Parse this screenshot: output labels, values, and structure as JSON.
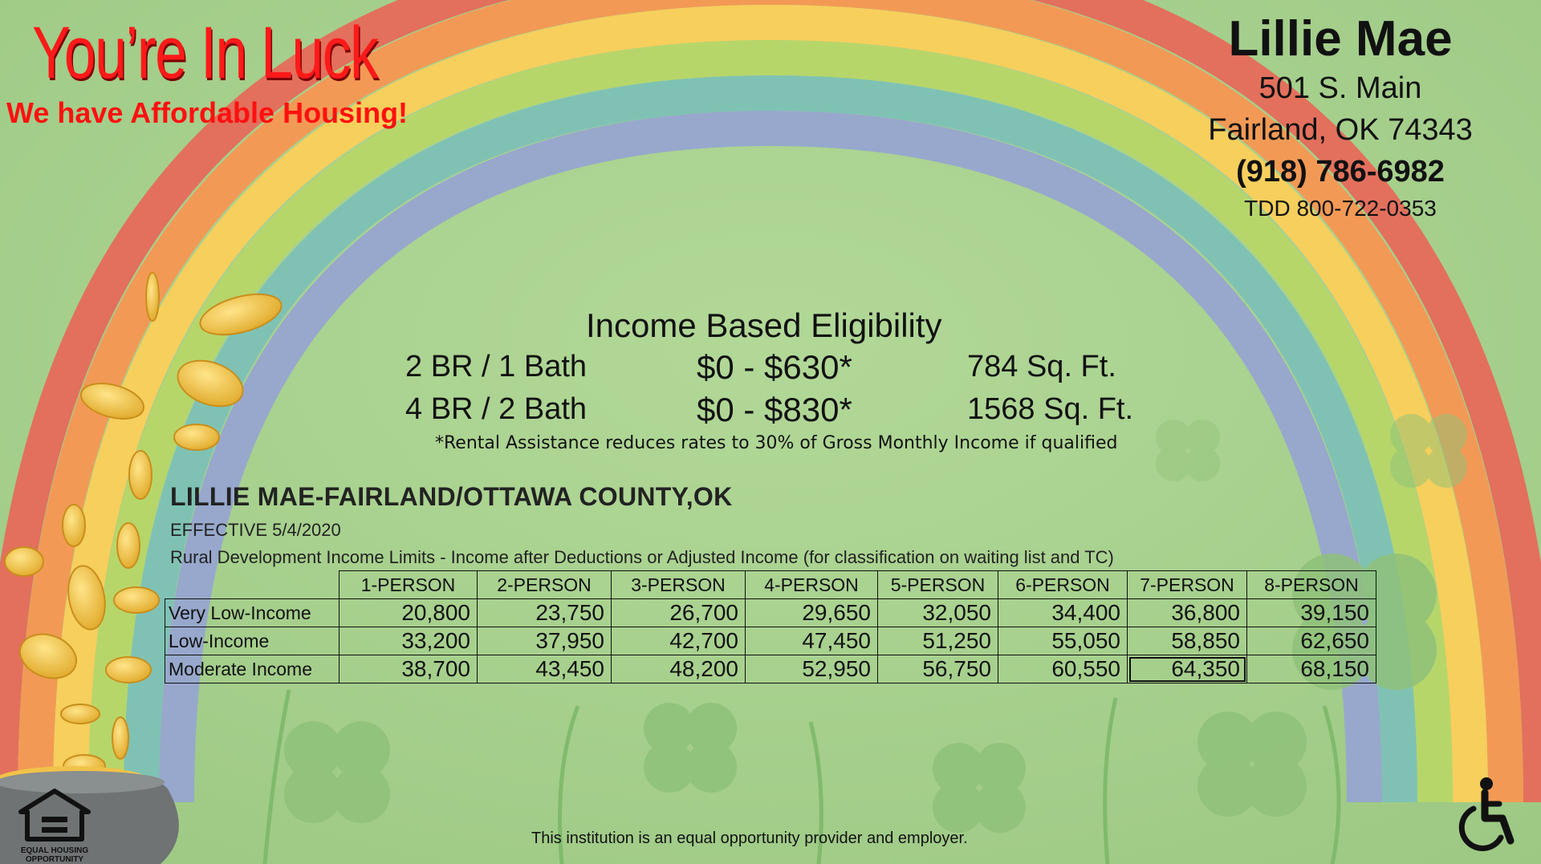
{
  "promo": {
    "headline": "You’re In Luck",
    "subheadline": "We have Affordable Housing!"
  },
  "property": {
    "name": "Lillie Mae",
    "address_line1": "501 S. Main",
    "address_line2": "Fairland, OK 74343",
    "phone": "(918) 786-6982",
    "tdd": "TDD 800-722-0353"
  },
  "eligibility": {
    "title": "Income Based Eligibility",
    "units": [
      {
        "type": "2 BR / 1 Bath",
        "price": "$0 - $630*",
        "size": "784 Sq. Ft."
      },
      {
        "type": "4 BR / 2 Bath",
        "price": "$0 - $830*",
        "size": "1568 Sq. Ft."
      }
    ],
    "note": "*Rental Assistance reduces rates to 30% of Gross Monthly Income if qualified"
  },
  "income_limits": {
    "title": "LILLIE MAE-FAIRLAND/OTTAWA COUNTY,OK",
    "effective": "EFFECTIVE 5/4/2020",
    "description": "Rural Development Income Limits - Income after Deductions or Adjusted Income (for classification on waiting list and TC)",
    "columns": [
      "1-PERSON",
      "2-PERSON",
      "3-PERSON",
      "4-PERSON",
      "5-PERSON",
      "6-PERSON",
      "7-PERSON",
      "8-PERSON"
    ],
    "rows": [
      {
        "label": "Very Low-Income",
        "values": [
          "20,800",
          "23,750",
          "26,700",
          "29,650",
          "32,050",
          "34,400",
          "36,800",
          "39,150"
        ]
      },
      {
        "label": "Low-Income",
        "values": [
          "33,200",
          "37,950",
          "42,700",
          "47,450",
          "51,250",
          "55,050",
          "58,850",
          "62,650"
        ]
      },
      {
        "label": "Moderate Income",
        "values": [
          "38,700",
          "43,450",
          "48,200",
          "52,950",
          "56,750",
          "60,550",
          "64,350",
          "68,150"
        ]
      }
    ]
  },
  "footer": {
    "statement": "This institution is an equal opportunity provider and employer.",
    "eho_label": "EQUAL HOUSING OPPORTUNITY",
    "icons": [
      "equal-housing-opportunity-icon",
      "wheelchair-accessible-icon",
      "pot-of-gold-icon",
      "rainbow",
      "clover-background"
    ]
  },
  "colors": {
    "background": "#a8cf8e",
    "headline": "#ff1a1a",
    "rainbow": [
      "#e2705c",
      "#f29a55",
      "#f7cf5c",
      "#b7d66a",
      "#7fc2b4",
      "#97a8cc"
    ],
    "coin": "#f5c84a"
  }
}
